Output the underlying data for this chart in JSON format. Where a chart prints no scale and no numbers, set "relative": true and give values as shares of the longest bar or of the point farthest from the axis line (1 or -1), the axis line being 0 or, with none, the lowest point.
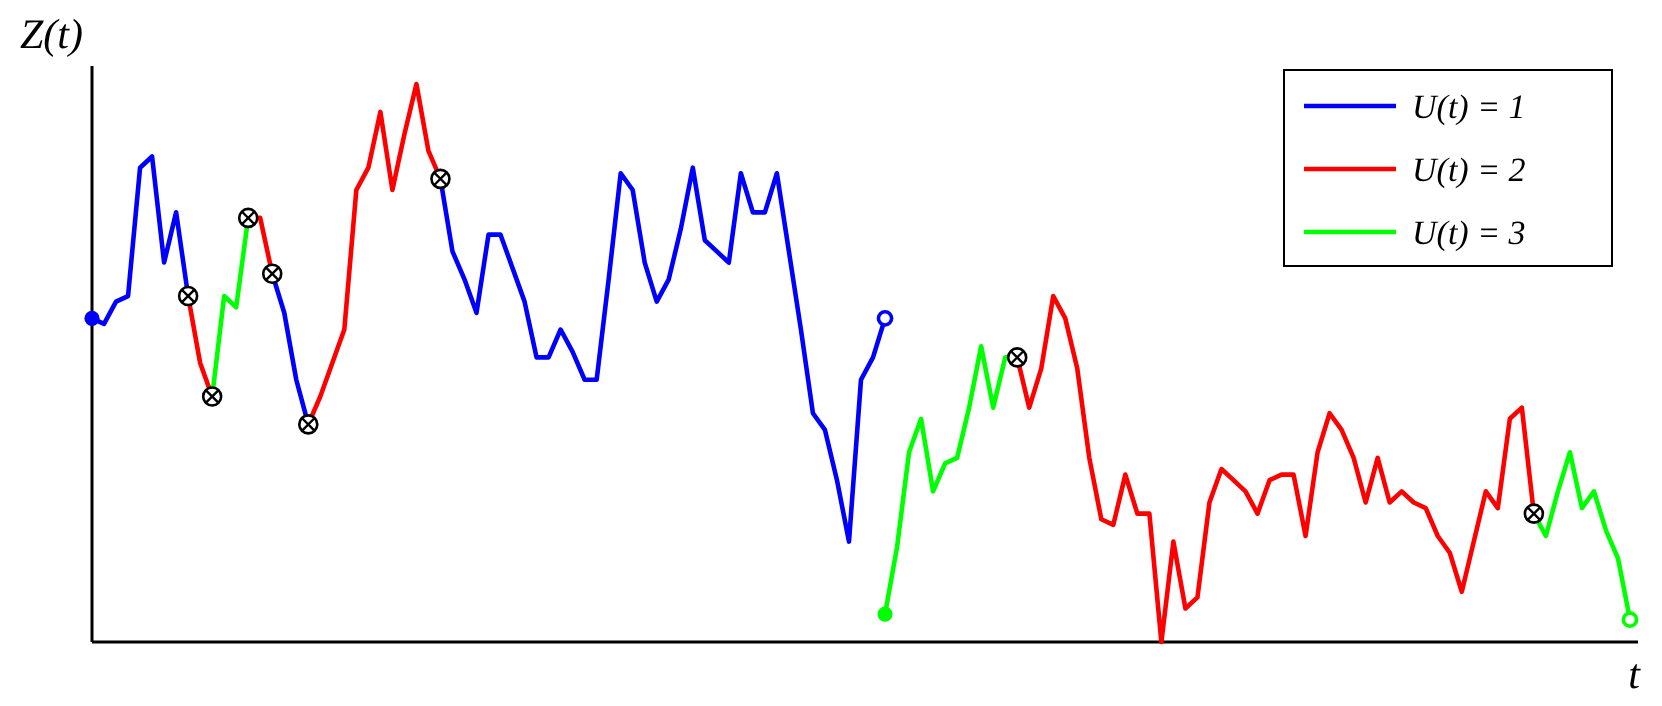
{
  "chart_data": {
    "type": "line",
    "relative": true,
    "xlabel": "t",
    "ylabel": "Z(t)",
    "legend": "top right",
    "line_style": "solid",
    "categories": [
      null,
      null,
      null,
      null,
      null,
      null,
      null,
      null,
      null,
      null,
      null,
      null,
      null,
      null,
      null,
      null,
      null,
      null,
      null,
      null,
      null,
      null,
      null,
      null,
      null,
      null,
      null,
      null,
      null,
      null,
      null,
      null,
      null,
      null,
      null,
      null,
      null,
      null,
      null,
      null,
      null,
      null,
      null,
      null,
      null,
      null,
      null,
      null,
      null,
      null,
      null,
      null,
      null,
      null,
      null,
      null,
      null,
      null,
      null,
      null,
      null,
      null,
      null,
      null,
      null,
      null,
      null,
      null,
      null,
      null,
      null,
      null,
      null,
      null,
      null,
      null,
      null,
      null,
      null,
      null,
      null,
      null,
      null,
      null,
      null,
      null,
      null,
      null,
      null,
      null,
      null,
      null,
      null,
      null,
      null,
      null,
      null,
      null,
      null,
      null,
      null,
      null,
      null,
      null,
      null,
      null,
      null,
      null,
      null,
      null,
      null,
      null,
      null,
      null,
      null,
      null,
      null,
      null,
      null,
      null,
      null,
      null,
      null,
      null,
      null,
      null,
      null,
      null,
      null
    ],
    "series": [
      {
        "name": "U(t) = 1",
        "color": "#0000ff",
        "values": [
          0.58,
          0.57,
          0.61,
          0.62,
          0.85,
          0.87,
          0.68,
          0.77,
          0.62,
          null,
          null,
          null,
          null,
          null,
          null,
          null,
          null,
          null,
          null,
          null,
          null,
          null,
          null,
          null,
          null,
          null,
          null,
          null,
          null,
          null,
          null,
          null,
          null,
          null,
          null,
          null,
          null,
          null,
          null,
          null,
          null,
          null,
          null,
          null,
          null,
          null,
          null,
          null,
          null,
          null,
          null,
          null,
          null,
          null,
          null,
          null,
          null,
          null,
          null,
          null,
          null,
          null,
          null,
          null,
          null,
          null,
          null,
          null,
          null,
          null,
          null,
          null,
          null,
          null,
          null,
          null,
          null,
          null,
          null,
          null,
          null,
          null,
          null,
          null,
          null,
          null,
          null,
          null,
          null,
          null,
          null,
          null,
          null,
          null,
          null,
          null,
          null,
          null,
          null,
          null,
          null,
          null,
          null,
          null,
          null,
          null,
          null,
          null,
          null,
          null,
          null,
          null,
          null,
          null,
          null,
          null,
          null,
          null,
          null,
          null,
          null,
          null,
          null,
          null,
          null,
          null,
          null,
          null,
          null
        ]
      },
      {
        "name": "U(t) = 2",
        "color": "#ff0000",
        "values": [
          null,
          null,
          null,
          null,
          null,
          null,
          null,
          null,
          0.62,
          0.5,
          0.44,
          null,
          null,
          null,
          null,
          null,
          null,
          null,
          null,
          null,
          null,
          null,
          null,
          null,
          null,
          null,
          null,
          null,
          null,
          null,
          null,
          null,
          null,
          null,
          null,
          null,
          null,
          null,
          null,
          null,
          null,
          null,
          null,
          null,
          null,
          null,
          null,
          null,
          null,
          null,
          null,
          null,
          null,
          null,
          null,
          null,
          null,
          null,
          null,
          null,
          null,
          null,
          null,
          null,
          null,
          null,
          null,
          null,
          null,
          null,
          null,
          null,
          null,
          null,
          null,
          null,
          null,
          null,
          null,
          null,
          null,
          null,
          null,
          null,
          null,
          null,
          null,
          null,
          null,
          null,
          null,
          null,
          null,
          null,
          null,
          null,
          null,
          null,
          null,
          null,
          null,
          null,
          null,
          null,
          null,
          null,
          null,
          null,
          null,
          null,
          null,
          null,
          null,
          null,
          null,
          null,
          null,
          null,
          null,
          null,
          null,
          null,
          null,
          null,
          null,
          null,
          null,
          null,
          null
        ]
      },
      {
        "name": "U(t) = 3",
        "color": "#00ff00",
        "values": [
          null,
          null,
          null,
          null,
          null,
          null,
          null,
          null,
          null,
          null,
          0.44,
          0.62,
          0.6,
          0.76,
          null,
          null,
          null,
          null,
          null,
          null,
          null,
          null,
          null,
          null,
          null,
          null,
          null,
          null,
          null,
          null,
          null,
          null,
          null,
          null,
          null,
          null,
          null,
          null,
          null,
          null,
          null,
          null,
          null,
          null,
          null,
          null,
          null,
          null,
          null,
          null,
          null,
          null,
          null,
          null,
          null,
          null,
          null,
          null,
          null,
          null,
          null,
          null,
          null,
          null,
          null,
          null,
          null,
          null,
          null,
          null,
          null,
          null,
          null,
          null,
          null,
          null,
          null,
          null,
          null,
          null,
          null,
          null,
          null,
          null,
          null,
          null,
          null,
          null,
          null,
          null,
          null,
          null,
          null,
          null,
          null,
          null,
          null,
          null,
          null,
          null,
          null,
          null,
          null,
          null,
          null,
          null,
          null,
          null,
          null,
          null,
          null,
          null,
          null,
          null,
          null,
          null,
          null,
          null,
          null,
          null,
          null,
          null,
          null,
          null,
          null,
          null,
          null,
          null,
          null
        ]
      },
      {
        "color": "#ff0000",
        "values": [
          null,
          null,
          null,
          null,
          null,
          null,
          null,
          null,
          null,
          null,
          null,
          null,
          null,
          0.76,
          0.76,
          0.66,
          null,
          null,
          null,
          null,
          null,
          null,
          null,
          null,
          null,
          null,
          null,
          null,
          null,
          null,
          null,
          null,
          null,
          null,
          null,
          null,
          null,
          null,
          null,
          null,
          null,
          null,
          null,
          null,
          null,
          null,
          null,
          null,
          null,
          null,
          null,
          null,
          null,
          null,
          null,
          null,
          null,
          null,
          null,
          null,
          null,
          null,
          null,
          null,
          null,
          null,
          null,
          null,
          null,
          null,
          null,
          null,
          null,
          null,
          null,
          null,
          null,
          null,
          null,
          null,
          null,
          null,
          null,
          null,
          null,
          null,
          null,
          null,
          null,
          null,
          null,
          null,
          null,
          null,
          null,
          null,
          null,
          null,
          null,
          null,
          null,
          null,
          null,
          null,
          null,
          null,
          null,
          null,
          null,
          null,
          null,
          null,
          null,
          null,
          null,
          null,
          null,
          null,
          null,
          null,
          null,
          null,
          null,
          null,
          null,
          null,
          null,
          null,
          null
        ]
      },
      {
        "color": "#0000ff",
        "values": [
          null,
          null,
          null,
          null,
          null,
          null,
          null,
          null,
          null,
          null,
          null,
          null,
          null,
          null,
          null,
          0.66,
          0.59,
          0.47,
          0.39,
          null,
          null,
          null,
          null,
          null,
          null,
          null,
          null,
          null,
          null,
          null,
          null,
          null,
          null,
          null,
          null,
          null,
          null,
          null,
          null,
          null,
          null,
          null,
          null,
          null,
          null,
          null,
          null,
          null,
          null,
          null,
          null,
          null,
          null,
          null,
          null,
          null,
          null,
          null,
          null,
          null,
          null,
          null,
          null,
          null,
          null,
          null,
          null,
          null,
          null,
          null,
          null,
          null,
          null,
          null,
          null,
          null,
          null,
          null,
          null,
          null,
          null,
          null,
          null,
          null,
          null,
          null,
          null,
          null,
          null,
          null,
          null,
          null,
          null,
          null,
          null,
          null,
          null,
          null,
          null,
          null,
          null,
          null,
          null,
          null,
          null,
          null,
          null,
          null,
          null,
          null,
          null,
          null,
          null,
          null,
          null,
          null,
          null,
          null,
          null,
          null,
          null,
          null,
          null,
          null,
          null,
          null,
          null,
          null,
          null
        ]
      },
      {
        "color": "#ff0000",
        "values": [
          null,
          null,
          null,
          null,
          null,
          null,
          null,
          null,
          null,
          null,
          null,
          null,
          null,
          null,
          null,
          null,
          null,
          null,
          0.39,
          0.44,
          0.5,
          0.56,
          0.81,
          0.85,
          0.95,
          0.81,
          0.91,
          1.0,
          0.88,
          0.83,
          null,
          null,
          null,
          null,
          null,
          null,
          null,
          null,
          null,
          null,
          null,
          null,
          null,
          null,
          null,
          null,
          null,
          null,
          null,
          null,
          null,
          null,
          null,
          null,
          null,
          null,
          null,
          null,
          null,
          null,
          null,
          null,
          null,
          null,
          null,
          null,
          null,
          null,
          null,
          null,
          null,
          null,
          null,
          null,
          null,
          null,
          null,
          null,
          null,
          null,
          null,
          null,
          null,
          null,
          null,
          null,
          null,
          null,
          null,
          null,
          null,
          null,
          null,
          null,
          null,
          null,
          null,
          null,
          null,
          null,
          null,
          null,
          null,
          null,
          null,
          null,
          null,
          null,
          null,
          null,
          null,
          null,
          null,
          null,
          null,
          null,
          null,
          null,
          null,
          null,
          null,
          null,
          null,
          null,
          null,
          null,
          null,
          null,
          null
        ]
      },
      {
        "color": "#0000ff",
        "values": [
          null,
          null,
          null,
          null,
          null,
          null,
          null,
          null,
          null,
          null,
          null,
          null,
          null,
          null,
          null,
          null,
          null,
          null,
          null,
          null,
          null,
          null,
          null,
          null,
          null,
          null,
          null,
          null,
          null,
          0.83,
          0.7,
          0.65,
          0.59,
          0.73,
          0.73,
          0.67,
          0.61,
          0.51,
          0.51,
          0.56,
          0.52,
          0.47,
          0.47,
          0.65,
          0.84,
          0.81,
          0.68,
          0.61,
          0.65,
          0.74,
          0.85,
          0.72,
          0.7,
          0.68,
          0.84,
          0.77,
          0.77,
          0.84,
          0.7,
          0.56,
          0.41,
          0.38,
          0.29,
          0.18,
          0.47,
          0.51,
          0.58,
          null,
          null,
          null,
          null,
          null,
          null,
          null,
          null,
          null,
          null,
          null,
          null,
          null,
          null,
          null,
          null,
          null,
          null,
          null,
          null,
          null,
          null,
          null,
          null,
          null,
          null,
          null,
          null,
          null,
          null,
          null,
          null,
          null,
          null,
          null,
          null,
          null,
          null,
          null,
          null,
          null,
          null,
          null,
          null,
          null,
          null,
          null,
          null,
          null,
          null,
          null,
          null,
          null,
          null,
          null,
          null,
          null,
          null,
          null,
          null,
          null,
          null
        ]
      },
      {
        "color": "#00ff00",
        "values": [
          null,
          null,
          null,
          null,
          null,
          null,
          null,
          null,
          null,
          null,
          null,
          null,
          null,
          null,
          null,
          null,
          null,
          null,
          null,
          null,
          null,
          null,
          null,
          null,
          null,
          null,
          null,
          null,
          null,
          null,
          null,
          null,
          null,
          null,
          null,
          null,
          null,
          null,
          null,
          null,
          null,
          null,
          null,
          null,
          null,
          null,
          null,
          null,
          null,
          null,
          null,
          null,
          null,
          null,
          null,
          null,
          null,
          null,
          null,
          null,
          null,
          null,
          null,
          null,
          null,
          null,
          0.05,
          0.17,
          0.34,
          0.4,
          0.27,
          0.32,
          0.33,
          0.42,
          0.53,
          0.42,
          0.51,
          0.51,
          null,
          null,
          null,
          null,
          null,
          null,
          null,
          null,
          null,
          null,
          null,
          null,
          null,
          null,
          null,
          null,
          null,
          null,
          null,
          null,
          null,
          null,
          null,
          null,
          null,
          null,
          null,
          null,
          null,
          null,
          null,
          null,
          null,
          null,
          null,
          null,
          null,
          null,
          null,
          null,
          null,
          null,
          null,
          null,
          null,
          null,
          null,
          null,
          null,
          null,
          null
        ]
      },
      {
        "color": "#ff0000",
        "values": [
          null,
          null,
          null,
          null,
          null,
          null,
          null,
          null,
          null,
          null,
          null,
          null,
          null,
          null,
          null,
          null,
          null,
          null,
          null,
          null,
          null,
          null,
          null,
          null,
          null,
          null,
          null,
          null,
          null,
          null,
          null,
          null,
          null,
          null,
          null,
          null,
          null,
          null,
          null,
          null,
          null,
          null,
          null,
          null,
          null,
          null,
          null,
          null,
          null,
          null,
          null,
          null,
          null,
          null,
          null,
          null,
          null,
          null,
          null,
          null,
          null,
          null,
          null,
          null,
          null,
          null,
          null,
          null,
          null,
          null,
          null,
          null,
          null,
          null,
          null,
          null,
          null,
          0.51,
          0.42,
          0.49,
          0.62,
          0.58,
          0.49,
          0.33,
          0.22,
          0.21,
          0.3,
          0.23,
          0.23,
          0.0,
          0.18,
          0.06,
          0.08,
          0.25,
          0.31,
          0.29,
          0.27,
          0.23,
          0.29,
          0.3,
          0.3,
          0.19,
          0.34,
          0.41,
          0.38,
          0.33,
          0.25,
          0.33,
          0.25,
          0.27,
          0.25,
          0.24,
          0.19,
          0.16,
          0.09,
          0.18,
          0.27,
          0.24,
          0.4,
          0.42,
          0.23,
          null,
          null,
          null,
          null,
          null,
          null,
          null,
          null
        ]
      },
      {
        "color": "#00ff00",
        "values": [
          null,
          null,
          null,
          null,
          null,
          null,
          null,
          null,
          null,
          null,
          null,
          null,
          null,
          null,
          null,
          null,
          null,
          null,
          null,
          null,
          null,
          null,
          null,
          null,
          null,
          null,
          null,
          null,
          null,
          null,
          null,
          null,
          null,
          null,
          null,
          null,
          null,
          null,
          null,
          null,
          null,
          null,
          null,
          null,
          null,
          null,
          null,
          null,
          null,
          null,
          null,
          null,
          null,
          null,
          null,
          null,
          null,
          null,
          null,
          null,
          null,
          null,
          null,
          null,
          null,
          null,
          null,
          null,
          null,
          null,
          null,
          null,
          null,
          null,
          null,
          null,
          null,
          null,
          null,
          null,
          null,
          null,
          null,
          null,
          null,
          null,
          null,
          null,
          null,
          null,
          null,
          null,
          null,
          null,
          null,
          null,
          null,
          null,
          null,
          null,
          null,
          null,
          null,
          null,
          null,
          null,
          null,
          null,
          null,
          null,
          null,
          null,
          null,
          null,
          null,
          null,
          null,
          null,
          null,
          null,
          0.23,
          0.19,
          0.27,
          0.34,
          0.24,
          0.27,
          0.2,
          0.15,
          0.04
        ]
      }
    ]
  }
}
